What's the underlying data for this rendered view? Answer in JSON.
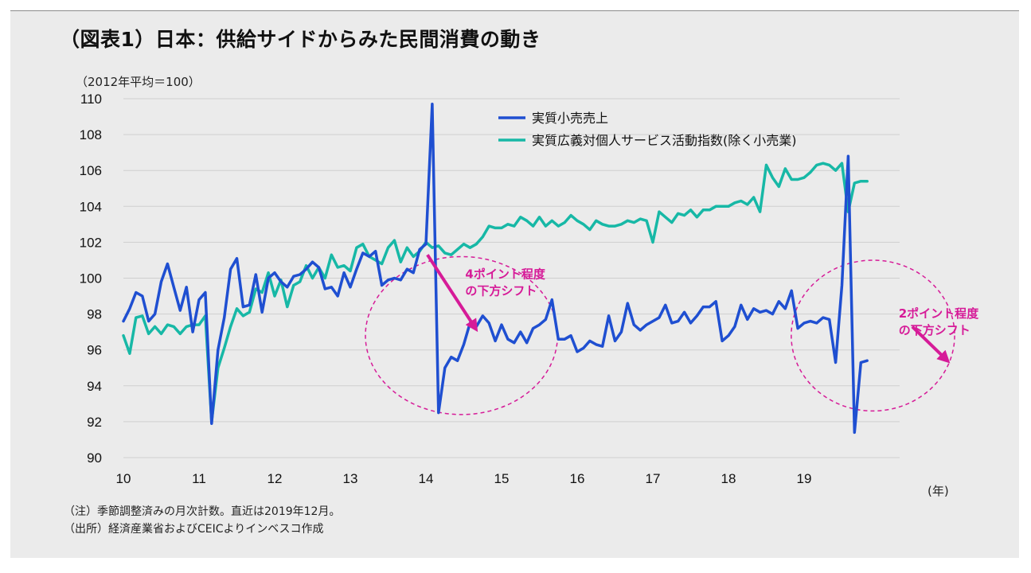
{
  "title": "（図表1）日本：供給サイドからみた民間消費の動き",
  "unit_label": "（2012年平均＝100）",
  "x_unit_label": "(年)",
  "notes": [
    "（注）季節調整済みの月次計数。直近は2019年12月。",
    "（出所）経済産業省およびCEICよりインベスコ作成"
  ],
  "chart_data": {
    "type": "line",
    "ylim": [
      90,
      110
    ],
    "yticks": [
      90,
      92,
      94,
      96,
      98,
      100,
      102,
      104,
      106,
      108,
      110
    ],
    "xlim": [
      2010.0,
      2020.0
    ],
    "xticks": [
      {
        "value": 2010,
        "label": "10"
      },
      {
        "value": 2011,
        "label": "11"
      },
      {
        "value": 2012,
        "label": "12"
      },
      {
        "value": 2013,
        "label": "13"
      },
      {
        "value": 2014,
        "label": "14"
      },
      {
        "value": 2015,
        "label": "15"
      },
      {
        "value": 2016,
        "label": "16"
      },
      {
        "value": 2017,
        "label": "17"
      },
      {
        "value": 2018,
        "label": "18"
      },
      {
        "value": 2019,
        "label": "19"
      }
    ],
    "grid": "horizontal",
    "legend_position": "top-right",
    "series": [
      {
        "name": "実質小売売上",
        "color": "#1f4fd1",
        "start": "2010-01",
        "values": [
          97.6,
          98.3,
          99.2,
          99.0,
          97.6,
          98.0,
          99.8,
          100.8,
          99.5,
          98.2,
          99.5,
          97.0,
          98.8,
          99.2,
          91.9,
          96.0,
          97.8,
          100.5,
          101.1,
          98.4,
          98.5,
          100.2,
          98.1,
          100.0,
          100.3,
          99.8,
          99.5,
          100.1,
          100.2,
          100.5,
          100.9,
          100.6,
          99.4,
          99.5,
          99.0,
          100.3,
          99.5,
          100.5,
          101.4,
          101.2,
          101.5,
          99.6,
          99.9,
          100.0,
          99.9,
          100.5,
          100.3,
          101.6,
          101.9,
          109.7,
          92.5,
          95.0,
          95.6,
          95.4,
          96.3,
          97.5,
          97.3,
          97.9,
          97.5,
          96.5,
          97.4,
          96.6,
          96.4,
          97.0,
          96.4,
          97.2,
          97.4,
          97.7,
          98.8,
          96.6,
          96.6,
          96.8,
          95.9,
          96.1,
          96.5,
          96.3,
          96.2,
          97.9,
          96.5,
          97.0,
          98.6,
          97.4,
          97.1,
          97.4,
          97.6,
          97.8,
          98.5,
          97.5,
          97.6,
          98.1,
          97.5,
          97.9,
          98.4,
          98.4,
          98.7,
          96.5,
          96.8,
          97.3,
          98.5,
          97.7,
          98.3,
          98.1,
          98.2,
          98.0,
          98.7,
          98.3,
          99.3,
          97.2,
          97.5,
          97.6,
          97.5,
          97.8,
          97.7,
          95.3,
          99.6,
          106.8,
          91.4,
          95.3,
          95.4
        ]
      },
      {
        "name": "実質広義対個人サービス活動指数(除く小売業)",
        "color": "#17b8a6",
        "start": "2010-01",
        "values": [
          96.8,
          95.8,
          97.8,
          97.9,
          96.9,
          97.3,
          96.9,
          97.4,
          97.3,
          96.9,
          97.3,
          97.4,
          97.4,
          97.9,
          92.0,
          95.0,
          96.1,
          97.3,
          98.3,
          97.9,
          98.1,
          99.4,
          99.2,
          100.3,
          99.0,
          99.9,
          98.4,
          99.6,
          99.8,
          100.7,
          100.0,
          100.6,
          100.0,
          101.3,
          100.6,
          100.7,
          100.4,
          101.7,
          101.9,
          101.2,
          101.0,
          100.8,
          101.7,
          102.1,
          100.9,
          101.7,
          101.2,
          101.5,
          102.0,
          101.7,
          101.8,
          101.4,
          101.3,
          101.6,
          101.9,
          101.7,
          101.9,
          102.3,
          102.9,
          102.8,
          102.8,
          103.0,
          102.9,
          103.4,
          103.2,
          102.9,
          103.4,
          102.9,
          103.2,
          102.9,
          103.1,
          103.5,
          103.2,
          103.0,
          102.7,
          103.2,
          103.0,
          102.9,
          102.9,
          103.0,
          103.2,
          103.1,
          103.3,
          103.2,
          102.0,
          103.7,
          103.4,
          103.1,
          103.6,
          103.5,
          103.8,
          103.4,
          103.8,
          103.8,
          104.0,
          104.0,
          104.0,
          104.2,
          104.3,
          104.1,
          104.5,
          103.7,
          106.3,
          105.6,
          105.1,
          106.1,
          105.5,
          105.5,
          105.6,
          105.9,
          106.3,
          106.4,
          106.3,
          106.0,
          106.4,
          103.7,
          105.3,
          105.4,
          105.4
        ]
      }
    ],
    "annotations": [
      {
        "text": "4ポイント程度",
        "text2": "の下方シフト"
      },
      {
        "text": "2ポイント程度",
        "text2": "の下方シフト"
      }
    ]
  },
  "colors": {
    "annotation": "#d61b98",
    "panel": "#ebebeb"
  }
}
